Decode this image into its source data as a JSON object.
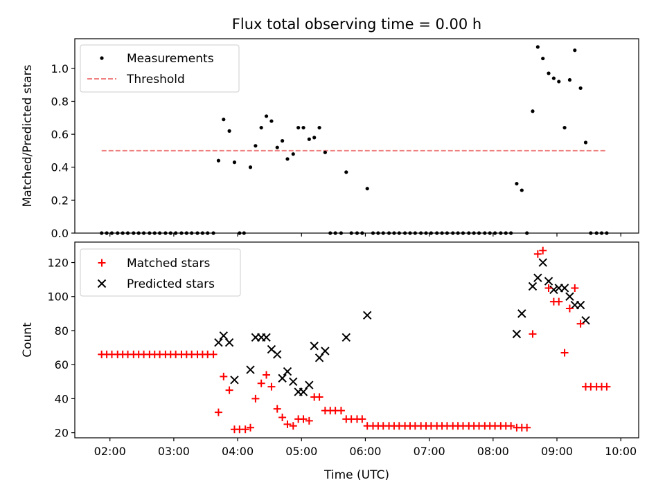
{
  "title": "Flux total observing time = 0.00 h",
  "colors": {
    "measurements": "#000000",
    "threshold": "#f08080",
    "matched": "#ff0000",
    "predicted": "#000000"
  },
  "chart_data": [
    {
      "type": "scatter",
      "ylabel": "Matched/Predicted stars",
      "xlabel": "",
      "x_unit": "hours UTC",
      "xlim": [
        1.45,
        10.28
      ],
      "ylim": [
        0,
        1.18
      ],
      "yticks": [
        "0.0",
        "0.2",
        "0.4",
        "0.6",
        "0.8",
        "1.0"
      ],
      "ytick_values": [
        0,
        0.2,
        0.4,
        0.6,
        0.8,
        1.0
      ],
      "legend": {
        "placement": "top-left",
        "entries": [
          "Measurements",
          "Threshold"
        ]
      },
      "threshold": {
        "name": "Threshold",
        "y": 0.5,
        "x_range": [
          1.87,
          9.78
        ]
      },
      "series": [
        {
          "name": "Measurements",
          "points": [
            [
              1.87,
              0
            ],
            [
              1.95,
              0
            ],
            [
              2.03,
              0
            ],
            [
              2.12,
              0
            ],
            [
              2.2,
              0
            ],
            [
              2.28,
              0
            ],
            [
              2.37,
              0
            ],
            [
              2.45,
              0
            ],
            [
              2.53,
              0
            ],
            [
              2.62,
              0
            ],
            [
              2.7,
              0
            ],
            [
              2.78,
              0
            ],
            [
              2.87,
              0
            ],
            [
              2.95,
              0
            ],
            [
              3.03,
              0
            ],
            [
              3.12,
              0
            ],
            [
              3.2,
              0
            ],
            [
              3.28,
              0
            ],
            [
              3.37,
              0
            ],
            [
              3.45,
              0
            ],
            [
              3.53,
              0
            ],
            [
              3.62,
              0
            ],
            [
              3.7,
              0.44
            ],
            [
              3.78,
              0.69
            ],
            [
              3.87,
              0.62
            ],
            [
              3.95,
              0.43
            ],
            [
              4.03,
              0
            ],
            [
              4.1,
              0
            ],
            [
              4.2,
              0.4
            ],
            [
              4.28,
              0.53
            ],
            [
              4.37,
              0.64
            ],
            [
              4.45,
              0.71
            ],
            [
              4.53,
              0.68
            ],
            [
              4.62,
              0.52
            ],
            [
              4.7,
              0.56
            ],
            [
              4.78,
              0.45
            ],
            [
              4.87,
              0.48
            ],
            [
              4.95,
              0.64
            ],
            [
              5.03,
              0.64
            ],
            [
              5.12,
              0.57
            ],
            [
              5.2,
              0.58
            ],
            [
              5.28,
              0.64
            ],
            [
              5.37,
              0.49
            ],
            [
              5.45,
              0
            ],
            [
              5.53,
              0
            ],
            [
              5.62,
              0
            ],
            [
              5.7,
              0.37
            ],
            [
              5.78,
              0
            ],
            [
              5.87,
              0
            ],
            [
              5.95,
              0
            ],
            [
              6.03,
              0.27
            ],
            [
              6.12,
              0
            ],
            [
              6.2,
              0
            ],
            [
              6.28,
              0
            ],
            [
              6.37,
              0
            ],
            [
              6.45,
              0
            ],
            [
              6.53,
              0
            ],
            [
              6.62,
              0
            ],
            [
              6.7,
              0
            ],
            [
              6.78,
              0
            ],
            [
              6.87,
              0
            ],
            [
              6.95,
              0
            ],
            [
              7.03,
              0
            ],
            [
              7.12,
              0
            ],
            [
              7.2,
              0
            ],
            [
              7.28,
              0
            ],
            [
              7.37,
              0
            ],
            [
              7.45,
              0
            ],
            [
              7.53,
              0
            ],
            [
              7.62,
              0
            ],
            [
              7.7,
              0
            ],
            [
              7.78,
              0
            ],
            [
              7.87,
              0
            ],
            [
              7.95,
              0
            ],
            [
              8.03,
              0
            ],
            [
              8.12,
              0
            ],
            [
              8.2,
              0
            ],
            [
              8.28,
              0
            ],
            [
              8.37,
              0.3
            ],
            [
              8.45,
              0.26
            ],
            [
              8.53,
              0
            ],
            [
              8.62,
              0.74
            ],
            [
              8.7,
              1.13
            ],
            [
              8.78,
              1.06
            ],
            [
              8.87,
              0.97
            ],
            [
              8.95,
              0.94
            ],
            [
              9.03,
              0.92
            ],
            [
              9.12,
              0.64
            ],
            [
              9.2,
              0.93
            ],
            [
              9.28,
              1.11
            ],
            [
              9.37,
              0.88
            ],
            [
              9.45,
              0.55
            ],
            [
              9.53,
              0
            ],
            [
              9.62,
              0
            ],
            [
              9.7,
              0
            ],
            [
              9.78,
              0
            ]
          ]
        }
      ]
    },
    {
      "type": "scatter",
      "ylabel": "Count",
      "xlabel": "Time (UTC)",
      "x_unit": "hours UTC",
      "xlim": [
        1.45,
        10.28
      ],
      "ylim": [
        17,
        132
      ],
      "yticks": [
        "20",
        "40",
        "60",
        "80",
        "100",
        "120"
      ],
      "ytick_values": [
        20,
        40,
        60,
        80,
        100,
        120
      ],
      "xticks": [
        "02:00",
        "03:00",
        "04:00",
        "05:00",
        "06:00",
        "07:00",
        "08:00",
        "09:00",
        "10:00"
      ],
      "xtick_values": [
        2,
        3,
        4,
        5,
        6,
        7,
        8,
        9,
        10
      ],
      "legend": {
        "placement": "top-left",
        "entries": [
          "Matched stars",
          "Predicted stars"
        ]
      },
      "series": [
        {
          "name": "Matched stars",
          "points": [
            [
              1.87,
              66
            ],
            [
              1.95,
              66
            ],
            [
              2.03,
              66
            ],
            [
              2.12,
              66
            ],
            [
              2.2,
              66
            ],
            [
              2.28,
              66
            ],
            [
              2.37,
              66
            ],
            [
              2.45,
              66
            ],
            [
              2.53,
              66
            ],
            [
              2.62,
              66
            ],
            [
              2.7,
              66
            ],
            [
              2.78,
              66
            ],
            [
              2.87,
              66
            ],
            [
              2.95,
              66
            ],
            [
              3.03,
              66
            ],
            [
              3.12,
              66
            ],
            [
              3.2,
              66
            ],
            [
              3.28,
              66
            ],
            [
              3.37,
              66
            ],
            [
              3.45,
              66
            ],
            [
              3.53,
              66
            ],
            [
              3.62,
              66
            ],
            [
              3.7,
              32
            ],
            [
              3.78,
              53
            ],
            [
              3.87,
              45
            ],
            [
              3.95,
              22
            ],
            [
              4.03,
              22
            ],
            [
              4.12,
              22
            ],
            [
              4.2,
              23
            ],
            [
              4.28,
              40
            ],
            [
              4.37,
              49
            ],
            [
              4.45,
              54
            ],
            [
              4.53,
              47
            ],
            [
              4.62,
              34
            ],
            [
              4.7,
              29
            ],
            [
              4.78,
              25
            ],
            [
              4.87,
              24
            ],
            [
              4.95,
              28
            ],
            [
              5.03,
              28
            ],
            [
              5.12,
              27
            ],
            [
              5.2,
              41
            ],
            [
              5.28,
              41
            ],
            [
              5.37,
              33
            ],
            [
              5.45,
              33
            ],
            [
              5.53,
              33
            ],
            [
              5.62,
              33
            ],
            [
              5.7,
              28
            ],
            [
              5.78,
              28
            ],
            [
              5.87,
              28
            ],
            [
              5.95,
              28
            ],
            [
              6.03,
              24
            ],
            [
              6.12,
              24
            ],
            [
              6.2,
              24
            ],
            [
              6.28,
              24
            ],
            [
              6.37,
              24
            ],
            [
              6.45,
              24
            ],
            [
              6.53,
              24
            ],
            [
              6.62,
              24
            ],
            [
              6.7,
              24
            ],
            [
              6.78,
              24
            ],
            [
              6.87,
              24
            ],
            [
              6.95,
              24
            ],
            [
              7.03,
              24
            ],
            [
              7.12,
              24
            ],
            [
              7.2,
              24
            ],
            [
              7.28,
              24
            ],
            [
              7.37,
              24
            ],
            [
              7.45,
              24
            ],
            [
              7.53,
              24
            ],
            [
              7.62,
              24
            ],
            [
              7.7,
              24
            ],
            [
              7.78,
              24
            ],
            [
              7.87,
              24
            ],
            [
              7.95,
              24
            ],
            [
              8.03,
              24
            ],
            [
              8.12,
              24
            ],
            [
              8.2,
              24
            ],
            [
              8.28,
              24
            ],
            [
              8.37,
              23
            ],
            [
              8.45,
              23
            ],
            [
              8.53,
              23
            ],
            [
              8.62,
              78
            ],
            [
              8.7,
              125
            ],
            [
              8.78,
              127
            ],
            [
              8.87,
              105
            ],
            [
              8.95,
              97
            ],
            [
              9.03,
              97
            ],
            [
              9.12,
              67
            ],
            [
              9.2,
              93
            ],
            [
              9.28,
              105
            ],
            [
              9.37,
              84
            ],
            [
              9.45,
              47
            ],
            [
              9.53,
              47
            ],
            [
              9.62,
              47
            ],
            [
              9.7,
              47
            ],
            [
              9.78,
              47
            ]
          ]
        },
        {
          "name": "Predicted stars",
          "points": [
            [
              3.7,
              73
            ],
            [
              3.78,
              77
            ],
            [
              3.87,
              73
            ],
            [
              3.95,
              51
            ],
            [
              4.2,
              57
            ],
            [
              4.28,
              76
            ],
            [
              4.37,
              76
            ],
            [
              4.45,
              76
            ],
            [
              4.53,
              69
            ],
            [
              4.62,
              66
            ],
            [
              4.7,
              52
            ],
            [
              4.78,
              56
            ],
            [
              4.87,
              50
            ],
            [
              4.95,
              44
            ],
            [
              5.03,
              44
            ],
            [
              5.12,
              48
            ],
            [
              5.2,
              71
            ],
            [
              5.28,
              64
            ],
            [
              5.37,
              68
            ],
            [
              5.7,
              76
            ],
            [
              6.03,
              89
            ],
            [
              8.37,
              78
            ],
            [
              8.45,
              90
            ],
            [
              8.62,
              106
            ],
            [
              8.7,
              111
            ],
            [
              8.78,
              120
            ],
            [
              8.87,
              109
            ],
            [
              8.95,
              104
            ],
            [
              9.03,
              105
            ],
            [
              9.12,
              105
            ],
            [
              9.2,
              100
            ],
            [
              9.28,
              95
            ],
            [
              9.37,
              95
            ],
            [
              9.45,
              86
            ]
          ]
        }
      ]
    }
  ]
}
